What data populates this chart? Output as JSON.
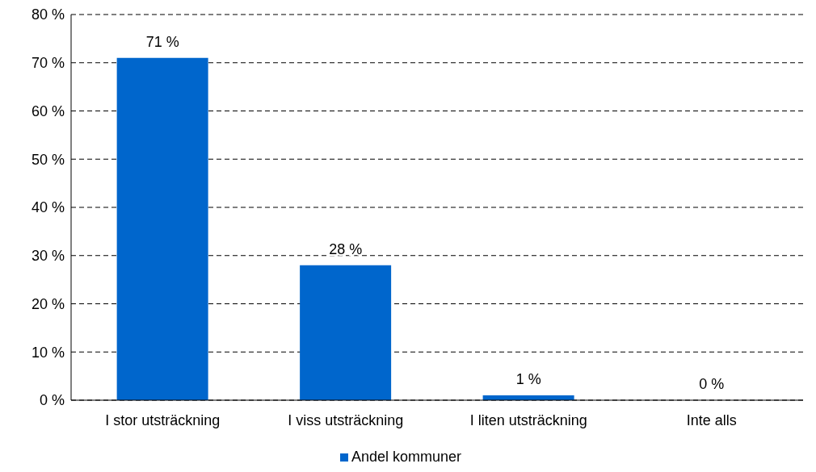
{
  "chart_data": {
    "type": "bar",
    "categories": [
      "I stor utsträckning",
      "I viss utsträckning",
      "I liten utsträckning",
      "Inte alls"
    ],
    "series": [
      {
        "name": "Andel kommuner",
        "color": "#0066cc",
        "values": [
          71,
          28,
          1,
          0
        ],
        "value_labels": [
          "71 %",
          "28 %",
          "1 %",
          "0 %"
        ]
      }
    ],
    "ylim": [
      0,
      80
    ],
    "yticks": [
      {
        "value": 0,
        "label": "0 %"
      },
      {
        "value": 10,
        "label": "10 %"
      },
      {
        "value": 20,
        "label": "20 %"
      },
      {
        "value": 30,
        "label": "30 %"
      },
      {
        "value": 40,
        "label": "40 %"
      },
      {
        "value": 50,
        "label": "50 %"
      },
      {
        "value": 60,
        "label": "60 %"
      },
      {
        "value": 70,
        "label": "70 %"
      },
      {
        "value": 80,
        "label": "80 %"
      }
    ],
    "grid": "y",
    "legend": "bottom"
  }
}
